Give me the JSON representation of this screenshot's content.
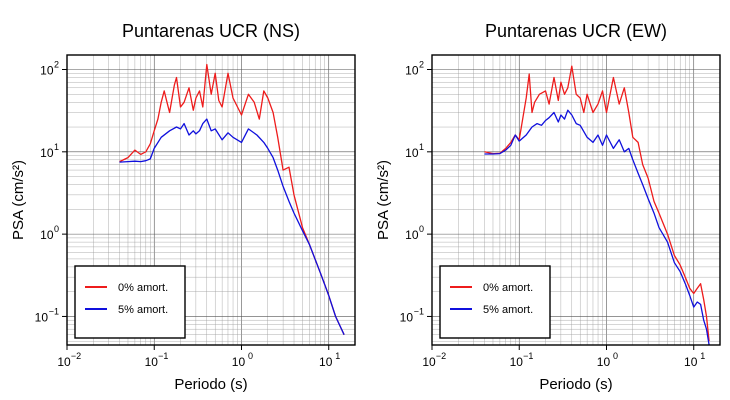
{
  "colors": {
    "undamped": "#ee1c1c",
    "damped": "#1010dd"
  },
  "chart_data": [
    {
      "type": "line",
      "title": "Puntarenas UCR (NS)",
      "xlabel": "Periodo (s)",
      "ylabel": "PSA (cm/s²)",
      "xscale": "log",
      "yscale": "log",
      "xlim": [
        0.01,
        20
      ],
      "ylim": [
        0.045,
        150
      ],
      "grid": true,
      "legend_position": "bottom-left",
      "series": [
        {
          "name": "0% amort.",
          "color": "#ee1c1c",
          "x": [
            0.04,
            0.05,
            0.06,
            0.07,
            0.08,
            0.09,
            0.1,
            0.11,
            0.12,
            0.13,
            0.14,
            0.15,
            0.16,
            0.17,
            0.18,
            0.2,
            0.22,
            0.25,
            0.28,
            0.3,
            0.33,
            0.36,
            0.4,
            0.45,
            0.5,
            0.55,
            0.6,
            0.7,
            0.8,
            0.9,
            1.0,
            1.2,
            1.4,
            1.6,
            1.8,
            2.0,
            2.3,
            2.6,
            3.0,
            3.5,
            4.0,
            5.0,
            6.0,
            8.0,
            10.0,
            12.0,
            15.0
          ],
          "y": [
            7.6,
            8.5,
            10.5,
            9.3,
            10.0,
            12.5,
            18.0,
            25.0,
            40.0,
            55.0,
            40.0,
            30.0,
            45.0,
            65.0,
            80.0,
            35.0,
            40.0,
            60.0,
            32.0,
            45.0,
            55.0,
            35.0,
            115.0,
            50.0,
            90.0,
            42.0,
            35.0,
            90.0,
            45.0,
            35.0,
            28.0,
            50.0,
            40.0,
            25.0,
            55.0,
            45.0,
            30.0,
            15.0,
            6.0,
            6.5,
            3.0,
            1.2,
            0.75,
            0.34,
            0.18,
            0.1,
            0.06
          ]
        },
        {
          "name": "5% amort.",
          "color": "#1010dd",
          "x": [
            0.04,
            0.05,
            0.06,
            0.07,
            0.08,
            0.09,
            0.1,
            0.12,
            0.15,
            0.18,
            0.2,
            0.22,
            0.25,
            0.28,
            0.3,
            0.33,
            0.36,
            0.4,
            0.45,
            0.5,
            0.6,
            0.7,
            0.8,
            1.0,
            1.2,
            1.5,
            1.8,
            2.0,
            2.3,
            2.6,
            3.0,
            3.5,
            4.0,
            5.0,
            6.0,
            8.0,
            10.0,
            12.0,
            15.0
          ],
          "y": [
            7.5,
            7.6,
            7.7,
            7.6,
            7.8,
            8.2,
            11.0,
            15.0,
            18.0,
            20.0,
            19.0,
            22.0,
            16.0,
            18.0,
            16.5,
            18.0,
            22.0,
            25.0,
            18.0,
            19.0,
            14.0,
            17.0,
            15.0,
            13.0,
            19.0,
            16.0,
            13.0,
            11.0,
            8.5,
            6.0,
            3.8,
            2.5,
            1.8,
            1.1,
            0.75,
            0.34,
            0.18,
            0.1,
            0.06
          ]
        }
      ]
    },
    {
      "type": "line",
      "title": "Puntarenas UCR (EW)",
      "xlabel": "Periodo (s)",
      "ylabel": "PSA (cm/s²)",
      "xscale": "log",
      "yscale": "log",
      "xlim": [
        0.01,
        20
      ],
      "ylim": [
        0.045,
        150
      ],
      "grid": true,
      "legend_position": "bottom-left",
      "series": [
        {
          "name": "0% amort.",
          "color": "#ee1c1c",
          "x": [
            0.04,
            0.05,
            0.06,
            0.07,
            0.08,
            0.09,
            0.1,
            0.11,
            0.12,
            0.13,
            0.14,
            0.15,
            0.17,
            0.2,
            0.22,
            0.25,
            0.28,
            0.3,
            0.33,
            0.36,
            0.4,
            0.45,
            0.5,
            0.55,
            0.6,
            0.7,
            0.8,
            0.9,
            1.0,
            1.2,
            1.4,
            1.6,
            1.8,
            2.0,
            2.3,
            2.6,
            3.0,
            3.5,
            4.0,
            5.0,
            6.0,
            7.0,
            8.0,
            9.0,
            10.0,
            11.0,
            12.0,
            13.0,
            14.0,
            15.0
          ],
          "y": [
            10.0,
            9.5,
            9.6,
            11.0,
            13.0,
            16.0,
            14.0,
            26.0,
            45.0,
            88.0,
            30.0,
            40.0,
            50.0,
            55.0,
            38.0,
            80.0,
            42.0,
            70.0,
            50.0,
            60.0,
            110.0,
            50.0,
            45.0,
            30.0,
            50.0,
            30.0,
            38.0,
            55.0,
            30.0,
            80.0,
            38.0,
            60.0,
            30.0,
            15.0,
            13.0,
            7.0,
            4.8,
            2.5,
            1.8,
            1.0,
            0.55,
            0.42,
            0.3,
            0.22,
            0.19,
            0.22,
            0.25,
            0.16,
            0.1,
            0.05
          ]
        },
        {
          "name": "5% amort.",
          "color": "#1010dd",
          "x": [
            0.04,
            0.05,
            0.06,
            0.07,
            0.08,
            0.09,
            0.1,
            0.12,
            0.14,
            0.16,
            0.18,
            0.2,
            0.22,
            0.25,
            0.28,
            0.3,
            0.33,
            0.36,
            0.4,
            0.45,
            0.5,
            0.6,
            0.7,
            0.8,
            0.9,
            1.0,
            1.2,
            1.4,
            1.6,
            1.8,
            2.0,
            2.3,
            2.6,
            3.0,
            3.5,
            4.0,
            5.0,
            6.0,
            7.0,
            8.0,
            9.0,
            10.0,
            11.0,
            12.0,
            13.0,
            14.0,
            15.0
          ],
          "y": [
            9.4,
            9.4,
            9.5,
            10.5,
            12.0,
            16.0,
            13.5,
            16.0,
            20.0,
            22.0,
            21.0,
            24.0,
            26.0,
            30.0,
            23.0,
            28.0,
            25.0,
            32.0,
            28.0,
            22.0,
            21.0,
            15.0,
            13.0,
            16.0,
            12.0,
            16.0,
            11.0,
            14.0,
            10.0,
            11.0,
            8.0,
            5.5,
            4.0,
            2.7,
            1.8,
            1.2,
            0.8,
            0.45,
            0.35,
            0.25,
            0.18,
            0.13,
            0.15,
            0.14,
            0.09,
            0.07,
            0.045
          ]
        }
      ]
    }
  ]
}
